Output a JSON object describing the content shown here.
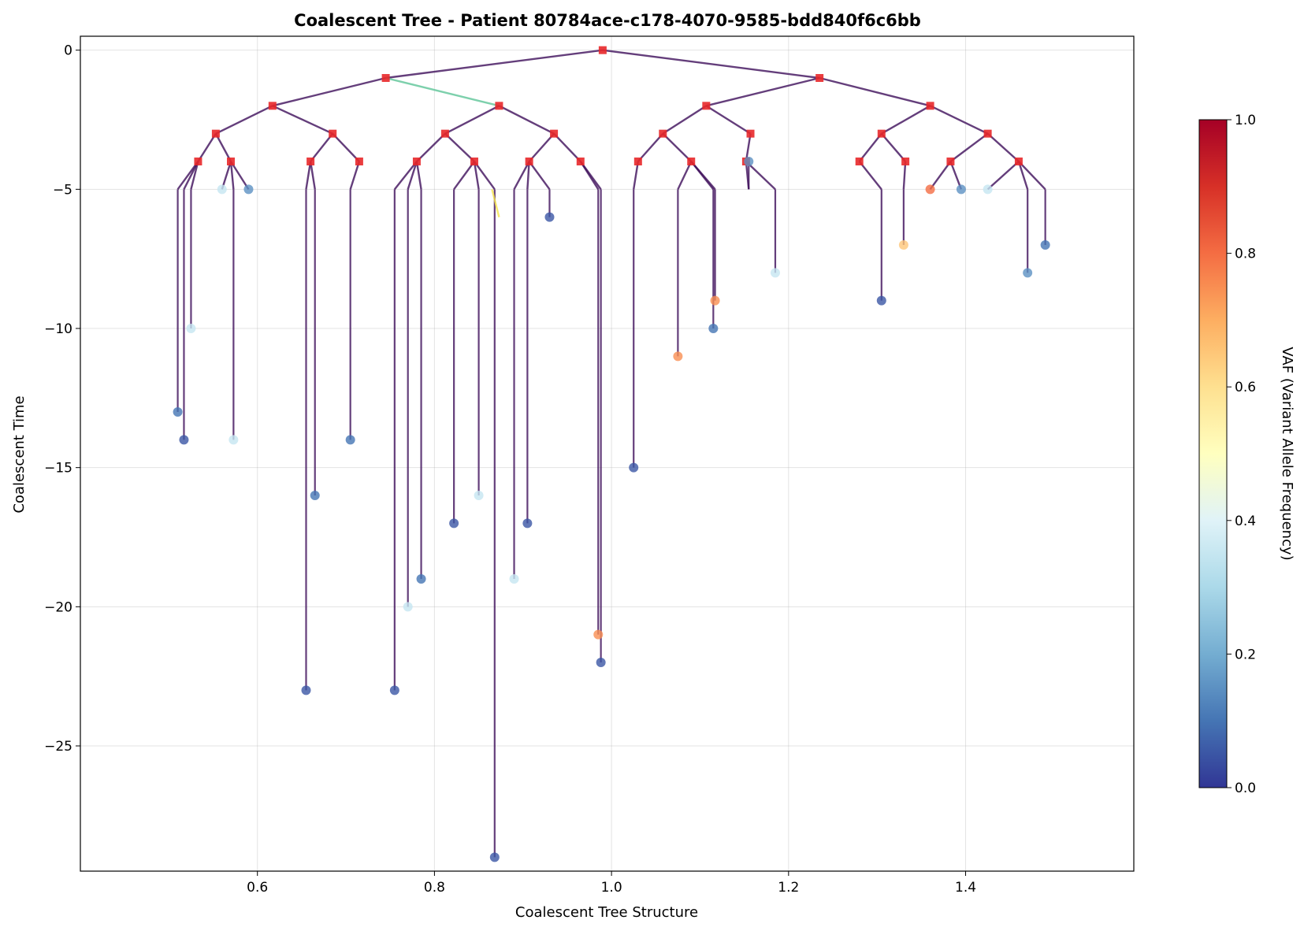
{
  "chart_data": {
    "type": "scatter",
    "subtype": "coalescent-tree",
    "title": "Coalescent Tree - Patient 80784ace-c178-4070-9585-bdd840f6c6bb",
    "xlabel": "Coalescent Tree Structure",
    "ylabel": "Coalescent Time",
    "xlim": [
      0.4,
      1.59
    ],
    "ylim": [
      -29.5,
      0.5
    ],
    "xticks": [
      "0.6",
      "0.8",
      "1.0",
      "1.2",
      "1.4"
    ],
    "xtick_values": [
      0.6,
      0.8,
      1.0,
      1.2,
      1.4
    ],
    "yticks": [
      "0",
      "−5",
      "−10",
      "−15",
      "−20",
      "−25"
    ],
    "ytick_values": [
      0,
      -5,
      -10,
      -15,
      -20,
      -25
    ],
    "grid": true,
    "colorbar": {
      "label": "VAF (Variant Allele Frequency)",
      "min": 0.0,
      "max": 1.0,
      "ticks": [
        "0.0",
        "0.2",
        "0.4",
        "0.6",
        "0.8",
        "1.0"
      ],
      "colormap": "RdYlBu_r",
      "stops": [
        "#313695",
        "#4575b4",
        "#74add1",
        "#abd9e9",
        "#e0f3f8",
        "#ffffbf",
        "#fee090",
        "#fdae61",
        "#f46d43",
        "#d73027",
        "#a50026"
      ]
    },
    "colors": {
      "internal_node": "#e8282a",
      "edge": "#3d0e5a",
      "highlight_edge_1": "#5cc497",
      "highlight_edge_2": "#f5e44b"
    },
    "marker_legend": {
      "square": "internal node",
      "circle": "leaf, colored by VAF"
    },
    "root": {
      "x": 0.99,
      "y": 0
    },
    "internal_nodes": [
      {
        "x": 0.745,
        "y": -1
      },
      {
        "x": 1.235,
        "y": -1
      },
      {
        "x": 0.617,
        "y": -2
      },
      {
        "x": 0.873,
        "y": -2
      },
      {
        "x": 1.107,
        "y": -2
      },
      {
        "x": 1.36,
        "y": -2
      },
      {
        "x": 0.553,
        "y": -3
      },
      {
        "x": 0.685,
        "y": -3
      },
      {
        "x": 0.812,
        "y": -3
      },
      {
        "x": 0.935,
        "y": -3
      },
      {
        "x": 1.058,
        "y": -3
      },
      {
        "x": 1.157,
        "y": -3
      },
      {
        "x": 1.305,
        "y": -3
      },
      {
        "x": 1.425,
        "y": -3
      },
      {
        "x": 0.533,
        "y": -4
      },
      {
        "x": 0.57,
        "y": -4
      },
      {
        "x": 0.66,
        "y": -4
      },
      {
        "x": 0.715,
        "y": -4
      },
      {
        "x": 0.78,
        "y": -4
      },
      {
        "x": 0.845,
        "y": -4
      },
      {
        "x": 0.907,
        "y": -4
      },
      {
        "x": 0.965,
        "y": -4
      },
      {
        "x": 1.03,
        "y": -4
      },
      {
        "x": 1.09,
        "y": -4
      },
      {
        "x": 1.152,
        "y": -4
      },
      {
        "x": 1.28,
        "y": -4
      },
      {
        "x": 1.332,
        "y": -4
      },
      {
        "x": 1.383,
        "y": -4
      },
      {
        "x": 1.46,
        "y": -4
      }
    ],
    "leaves": [
      {
        "x": 0.51,
        "y": -13,
        "vaf": 0.1
      },
      {
        "x": 0.517,
        "y": -14,
        "vaf": 0.05
      },
      {
        "x": 0.525,
        "y": -10,
        "vaf": 0.35
      },
      {
        "x": 0.56,
        "y": -5,
        "vaf": 0.35
      },
      {
        "x": 0.573,
        "y": -14,
        "vaf": 0.35
      },
      {
        "x": 0.59,
        "y": -5,
        "vaf": 0.15
      },
      {
        "x": 0.655,
        "y": -23,
        "vaf": 0.05
      },
      {
        "x": 0.665,
        "y": -16,
        "vaf": 0.1
      },
      {
        "x": 0.705,
        "y": -14,
        "vaf": 0.1
      },
      {
        "x": 0.755,
        "y": -23,
        "vaf": 0.05
      },
      {
        "x": 0.77,
        "y": -20,
        "vaf": 0.35
      },
      {
        "x": 0.785,
        "y": -19,
        "vaf": 0.1
      },
      {
        "x": 0.822,
        "y": -17,
        "vaf": 0.05
      },
      {
        "x": 0.85,
        "y": -16,
        "vaf": 0.35
      },
      {
        "x": 0.868,
        "y": -29,
        "vaf": 0.05
      },
      {
        "x": 0.89,
        "y": -19,
        "vaf": 0.35
      },
      {
        "x": 0.905,
        "y": -17,
        "vaf": 0.05
      },
      {
        "x": 0.93,
        "y": -6,
        "vaf": 0.05
      },
      {
        "x": 0.988,
        "y": -22,
        "vaf": 0.05
      },
      {
        "x": 0.985,
        "y": -21,
        "vaf": 0.75
      },
      {
        "x": 1.025,
        "y": -15,
        "vaf": 0.05
      },
      {
        "x": 1.075,
        "y": -11,
        "vaf": 0.75
      },
      {
        "x": 1.115,
        "y": -10,
        "vaf": 0.1
      },
      {
        "x": 1.117,
        "y": -9,
        "vaf": 0.75
      },
      {
        "x": 1.155,
        "y": -4,
        "vaf": 0.15
      },
      {
        "x": 1.185,
        "y": -8,
        "vaf": 0.35
      },
      {
        "x": 1.305,
        "y": -9,
        "vaf": 0.05
      },
      {
        "x": 1.33,
        "y": -7,
        "vaf": 0.65
      },
      {
        "x": 1.36,
        "y": -5,
        "vaf": 0.8
      },
      {
        "x": 1.395,
        "y": -5,
        "vaf": 0.15
      },
      {
        "x": 1.425,
        "y": -5,
        "vaf": 0.35
      },
      {
        "x": 1.47,
        "y": -8,
        "vaf": 0.15
      },
      {
        "x": 1.49,
        "y": -7,
        "vaf": 0.1
      }
    ]
  }
}
